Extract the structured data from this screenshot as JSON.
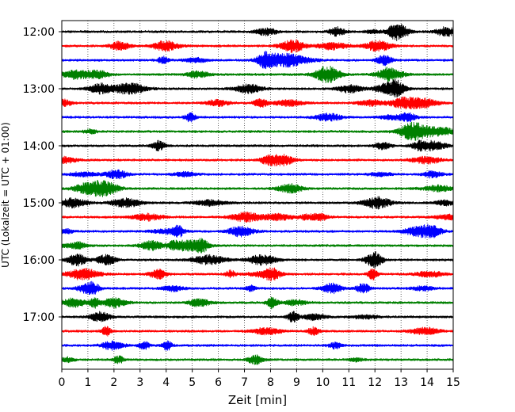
{
  "chart_data": {
    "type": "line",
    "title": "",
    "xlabel": "Zeit  [min]",
    "ylabel": "UTC (Lokalzeit = UTC + 01:00)",
    "xlim": [
      0,
      15
    ],
    "x_ticks": [
      "0",
      "1",
      "2",
      "3",
      "4",
      "5",
      "6",
      "7",
      "8",
      "9",
      "10",
      "11",
      "12",
      "13",
      "14",
      "15"
    ],
    "y_ticks": [
      "12:00",
      "13:00",
      "14:00",
      "15:00",
      "16:00",
      "17:00"
    ],
    "grid": "vertical dotted",
    "traces": [
      {
        "start": "12:00",
        "color": "#000000"
      },
      {
        "start": "12:15",
        "color": "#ff0000"
      },
      {
        "start": "12:30",
        "color": "#0000ff"
      },
      {
        "start": "12:45",
        "color": "#008000"
      },
      {
        "start": "13:00",
        "color": "#000000"
      },
      {
        "start": "13:15",
        "color": "#ff0000"
      },
      {
        "start": "13:30",
        "color": "#0000ff"
      },
      {
        "start": "13:45",
        "color": "#008000"
      },
      {
        "start": "14:00",
        "color": "#000000"
      },
      {
        "start": "14:15",
        "color": "#ff0000"
      },
      {
        "start": "14:30",
        "color": "#0000ff"
      },
      {
        "start": "14:45",
        "color": "#008000"
      },
      {
        "start": "15:00",
        "color": "#000000"
      },
      {
        "start": "15:15",
        "color": "#ff0000"
      },
      {
        "start": "15:30",
        "color": "#0000ff"
      },
      {
        "start": "15:45",
        "color": "#008000"
      },
      {
        "start": "16:00",
        "color": "#000000"
      },
      {
        "start": "16:15",
        "color": "#ff0000"
      },
      {
        "start": "16:30",
        "color": "#0000ff"
      },
      {
        "start": "16:45",
        "color": "#008000"
      },
      {
        "start": "17:00",
        "color": "#000000"
      },
      {
        "start": "17:15",
        "color": "#ff0000"
      },
      {
        "start": "17:30",
        "color": "#0000ff"
      },
      {
        "start": "17:45",
        "color": "#008000"
      }
    ]
  }
}
